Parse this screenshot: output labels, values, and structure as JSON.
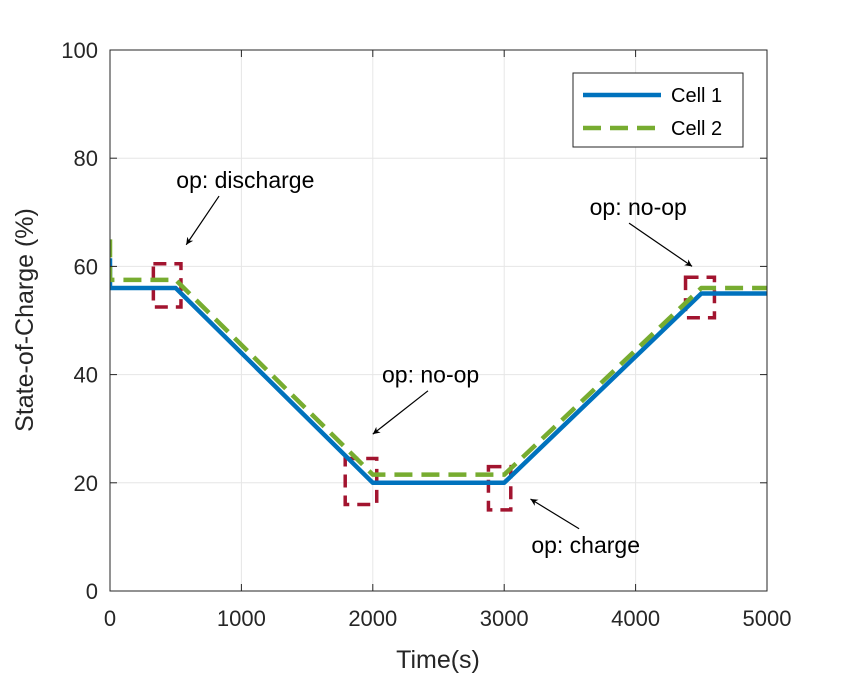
{
  "chart_data": {
    "type": "line",
    "title": "",
    "xlabel": "Time(s)",
    "ylabel": "State-of-Charge (%)",
    "xlim": [
      0,
      5000
    ],
    "ylim": [
      0,
      100
    ],
    "xticks": [
      0,
      1000,
      2000,
      3000,
      4000,
      5000
    ],
    "yticks": [
      0,
      20,
      40,
      60,
      80,
      100
    ],
    "grid": true,
    "legend_position": "top-right",
    "series": [
      {
        "name": "Cell 1",
        "color": "#0072bd",
        "style": "solid",
        "x": [
          0,
          0,
          500,
          2000,
          3000,
          4500,
          5000
        ],
        "y": [
          61.5,
          56,
          56,
          20,
          20,
          55,
          55
        ]
      },
      {
        "name": "Cell 2",
        "color": "#77ac30",
        "style": "dashed",
        "x": [
          0,
          0,
          500,
          2000,
          3000,
          4500,
          5000
        ],
        "y": [
          65,
          57.5,
          57.5,
          21.5,
          21.5,
          56,
          56
        ]
      }
    ],
    "highlight_boxes": {
      "color": "#a2142f",
      "regions": [
        {
          "x": [
            330,
            540
          ],
          "y": [
            52.5,
            60.5
          ]
        },
        {
          "x": [
            1790,
            2030
          ],
          "y": [
            16,
            24.5
          ]
        },
        {
          "x": [
            2880,
            3050
          ],
          "y": [
            15,
            23
          ]
        },
        {
          "x": [
            4380,
            4600
          ],
          "y": [
            50.5,
            58
          ]
        }
      ]
    },
    "annotations": [
      {
        "text": "op: discharge",
        "text_at": [
          1030,
          74.5
        ],
        "arrow_from": [
          830,
          73
        ],
        "arrow_to": [
          580,
          64
        ]
      },
      {
        "text": "op: no-op",
        "text_at": [
          4020,
          69.5
        ],
        "arrow_from": [
          3950,
          68
        ],
        "arrow_to": [
          4430,
          60
        ]
      },
      {
        "text": "op: no-op",
        "text_at": [
          2440,
          38.5
        ],
        "arrow_from": [
          2420,
          37
        ],
        "arrow_to": [
          2000,
          29
        ]
      },
      {
        "text": "op: charge",
        "text_at": [
          3620,
          7
        ],
        "arrow_from": [
          3570,
          11.5
        ],
        "arrow_to": [
          3200,
          17
        ]
      }
    ]
  }
}
